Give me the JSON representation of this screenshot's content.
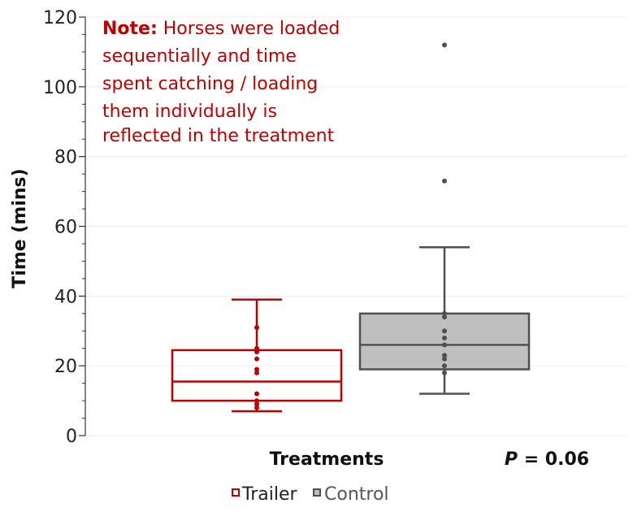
{
  "chart_data": {
    "type": "box",
    "xlabel": "Treatments",
    "ylabel": "Time (mins)",
    "ylim": [
      0,
      120
    ],
    "yticks": [
      0,
      20,
      40,
      60,
      80,
      100,
      120
    ],
    "grid": true,
    "legend_position": "bottom-center",
    "note_label": "Note:",
    "note_lines": [
      " Horses were loaded",
      "sequentially and time",
      "spent catching / loading",
      "them individually is",
      "reflected in the treatment"
    ],
    "stat_label": "P",
    "stat_value": " = 0.06",
    "colors": {
      "note": "#c00000",
      "trailer": "#c00000",
      "control_stroke": "#505050",
      "control_fill": "#bfbfbf",
      "grid": "#ececec",
      "axis": "#333333"
    },
    "series": [
      {
        "name": "Trailer",
        "min": 7,
        "q1": 10,
        "median": 15.5,
        "q3": 24.5,
        "max": 39,
        "points": [
          8,
          9,
          10,
          12,
          18,
          19,
          22,
          24,
          25,
          31
        ],
        "outliers": []
      },
      {
        "name": "Control",
        "min": 12,
        "q1": 19,
        "median": 26,
        "q3": 35,
        "max": 54,
        "points": [
          18,
          20,
          22,
          23,
          26,
          28,
          30,
          34,
          35
        ],
        "outliers": [
          73,
          112
        ]
      }
    ]
  }
}
